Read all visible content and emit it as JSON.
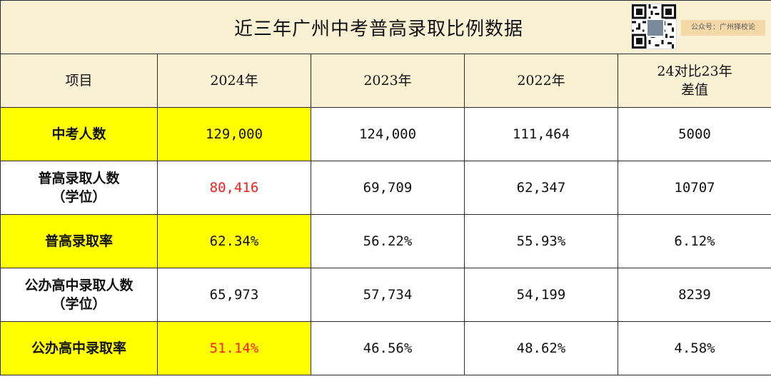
{
  "title": "近三年广州中考普高录取比例数据",
  "watermark": {
    "text": "公众号：广州择校论"
  },
  "columns": [
    "项目",
    "2024年",
    "2023年",
    "2022年",
    [
      "24对比23年",
      "差值"
    ]
  ],
  "rows": [
    {
      "label": [
        "中考人数"
      ],
      "values": [
        "129,000",
        "124,000",
        "111,464",
        "5000"
      ]
    },
    {
      "label": [
        "普高录取人数",
        "（学位）"
      ],
      "values": [
        "80,416",
        "69,709",
        "62,347",
        "10707"
      ]
    },
    {
      "label": [
        "普高录取率"
      ],
      "values": [
        "62.34%",
        "56.22%",
        "55.93%",
        "6.12%"
      ]
    },
    {
      "label": [
        "公办高中录取人数",
        "（学位）"
      ],
      "values": [
        "65,973",
        "57,734",
        "54,199",
        "8239"
      ]
    },
    {
      "label": [
        "公办高中录取率"
      ],
      "values": [
        "51.14%",
        "46.56%",
        "48.62%",
        "4.58%"
      ]
    }
  ],
  "colors": {
    "header_bg": "#faf1d4",
    "highlight": "#ffff00",
    "emphasis": "#ff1a1a"
  }
}
